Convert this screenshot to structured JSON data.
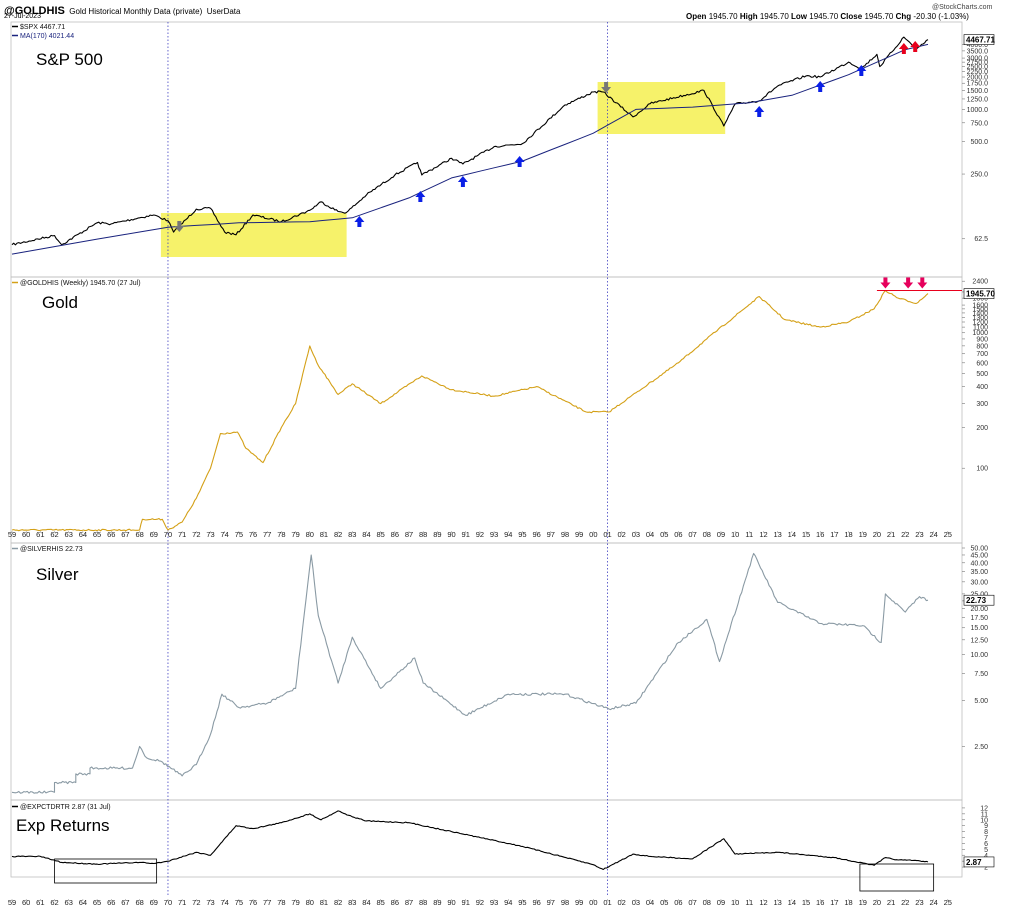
{
  "header": {
    "symbol": "@GOLDHIS",
    "description": "Gold Historical Monthly Data (private)",
    "source": "UserData",
    "date": "27-Jul-2023",
    "brand": "@StockCharts.com",
    "ohlc": {
      "open_label": "Open",
      "open": "1945.70",
      "high_label": "High",
      "high": "1945.70",
      "low_label": "Low",
      "low": "1945.70",
      "close_label": "Close",
      "close": "1945.70",
      "chg_label": "Chg",
      "chg": "-20.30 (-1.03%)"
    }
  },
  "colors": {
    "spx": "#000000",
    "ma": "#1a237e",
    "gold": "#d4a017",
    "silver": "#8a9aa4",
    "exp": "#000000",
    "highlight": "#f6f26a",
    "arrow_blue": "#0a1fe6",
    "arrow_red": "#e8001c",
    "arrow_pink": "#e6005c",
    "arrow_gray": "#777777",
    "dotted": "#4040c0"
  },
  "chart_data": [
    {
      "type": "line",
      "panel": "S&P 500",
      "title": "S&P 500",
      "legend": [
        "$SPX 4467.71",
        "MA(170) 4021.44"
      ],
      "last_value": "4467.71",
      "ma_value": "4021.44",
      "scale": "log",
      "ylim": [
        30,
        6500
      ],
      "yticks": [
        "4000.0",
        "3500.0",
        "3000.0",
        "2750.0",
        "2500.0",
        "2250.0",
        "2000.0",
        "1750.0",
        "1500.0",
        "1250.0",
        "1000.0",
        "750.0",
        "500.0",
        "250.0",
        "62.5"
      ],
      "ytick_values": [
        4000,
        3500,
        3000,
        2750,
        2500,
        2250,
        2000,
        1750,
        1500,
        1250,
        1000,
        750,
        500,
        250,
        62.5
      ],
      "series": [
        {
          "name": "$SPX",
          "x": [
            1959,
            1962,
            1962.5,
            1965,
            1966,
            1968,
            1969,
            1970,
            1970.4,
            1972,
            1973,
            1974,
            1974.8,
            1976,
            1978,
            1980,
            1980.8,
            1982,
            1982.6,
            1984,
            1986,
            1987.6,
            1987.9,
            1990,
            1990.8,
            1993,
            1995,
            1998,
            2000,
            2000.7,
            2002.8,
            2004,
            2007.8,
            2009.2,
            2010,
            2011.7,
            2013,
            2015,
            2016,
            2018,
            2018.9,
            2020,
            2020.2,
            2021.9,
            2022.8,
            2023.6
          ],
          "y": [
            55,
            67,
            55,
            88,
            86,
            98,
            104,
            92,
            72,
            118,
            120,
            72,
            68,
            104,
            90,
            115,
            138,
            112,
            110,
            160,
            245,
            320,
            245,
            350,
            310,
            450,
            480,
            1100,
            1450,
            1450,
            850,
            1130,
            1500,
            700,
            1120,
            1200,
            1650,
            2050,
            2000,
            2750,
            2400,
            3250,
            2500,
            4700,
            3650,
            4460
          ]
        },
        {
          "name": "MA(170)",
          "x": [
            1959,
            1965,
            1970,
            1975,
            1980,
            1983,
            1987,
            1990,
            1995,
            2000,
            2003,
            2007,
            2011,
            2014,
            2018,
            2022,
            2023.6
          ],
          "y": [
            45,
            62,
            80,
            88,
            90,
            98,
            150,
            230,
            330,
            600,
            1000,
            1050,
            1150,
            1350,
            2100,
            3600,
            4021
          ]
        }
      ],
      "highlights": [
        {
          "x0": 1969.5,
          "x1": 1982.6
        },
        {
          "x0": 2000.3,
          "x1": 2009.3
        }
      ],
      "annotations": {
        "blue_arrows": [
          1983.5,
          1987.8,
          1990.8,
          1994.8,
          2011.7,
          2016,
          2018.9
        ],
        "red_arrows": [
          2021.9,
          2022.7
        ],
        "gray_arrows": [
          1970.8,
          2000.9
        ]
      }
    },
    {
      "type": "line",
      "panel": "Gold",
      "title": "Gold",
      "legend": [
        "@GOLDHIS (Weekly) 1945.70 (27 Jul)"
      ],
      "last_value": "1945.70",
      "scale": "log",
      "ylim": [
        35,
        2450
      ],
      "yticks": [
        "2400",
        "2000",
        "1800",
        "1600",
        "1500",
        "1400",
        "1300",
        "1200",
        "1100",
        "1000",
        "900",
        "800",
        "700",
        "600",
        "500",
        "400",
        "300",
        "200",
        "100"
      ],
      "ytick_values": [
        2400,
        2000,
        1800,
        1600,
        1500,
        1400,
        1300,
        1200,
        1100,
        1000,
        900,
        800,
        700,
        600,
        500,
        400,
        300,
        200,
        100
      ],
      "series": [
        {
          "name": "@GOLDHIS",
          "x": [
            1959,
            1968,
            1968.2,
            1969.6,
            1970,
            1971,
            1972,
            1973,
            1973.7,
            1974.9,
            1975.5,
            1976.7,
            1978,
            1979,
            1980,
            1980.5,
            1982,
            1983,
            1985,
            1987.9,
            1990,
            1993,
            1996,
            1999.5,
            2001.1,
            2003,
            2006,
            2008,
            2011.7,
            2013.5,
            2016,
            2018,
            2019.8,
            2020.6,
            2021.5,
            2022.8,
            2023.6
          ],
          "y": [
            35,
            35,
            42,
            42,
            35,
            40,
            60,
            100,
            180,
            185,
            140,
            110,
            200,
            300,
            800,
            600,
            350,
            420,
            300,
            480,
            380,
            340,
            400,
            260,
            260,
            360,
            600,
            900,
            1850,
            1250,
            1100,
            1200,
            1500,
            2050,
            1800,
            1650,
            1945
          ]
        }
      ],
      "annotations": {
        "resistance": 2050,
        "pink_arrows": [
          2020.6,
          2022.2,
          2023.2
        ]
      }
    },
    {
      "type": "line",
      "panel": "Silver",
      "title": "Silver",
      "legend": [
        "@SILVERHIS 22.73"
      ],
      "last_value": "22.73",
      "scale": "log",
      "ylim": [
        1.2,
        50
      ],
      "yticks": [
        "50.00",
        "45.00",
        "40.00",
        "35.00",
        "30.00",
        "25.00",
        "22.50",
        "20.00",
        "17.50",
        "15.00",
        "12.50",
        "10.00",
        "7.50",
        "5.00",
        "2.50"
      ],
      "ytick_values": [
        50,
        45,
        40,
        35,
        30,
        25,
        22.5,
        20,
        17.5,
        15,
        12.5,
        10,
        7.5,
        5,
        2.5
      ],
      "series": [
        {
          "name": "@SILVERHIS",
          "x": [
            1959,
            1962,
            1962,
            1963.5,
            1963.5,
            1964.5,
            1964.5,
            1967.5,
            1968,
            1968.5,
            1969.5,
            1971,
            1972,
            1973,
            1973.8,
            1975,
            1977,
            1979,
            1980.1,
            1980.6,
            1982,
            1983,
            1985,
            1987.4,
            1988,
            1991,
            1994,
            1998,
            2001.1,
            2003,
            2006,
            2008,
            2008.9,
            2011.3,
            2013,
            2016,
            2019,
            2020.3,
            2020.6,
            2022,
            2023,
            2023.6
          ],
          "y": [
            1.25,
            1.25,
            1.45,
            1.45,
            1.65,
            1.65,
            1.8,
            1.8,
            2.5,
            2.1,
            2.0,
            1.6,
            1.9,
            3.0,
            5.5,
            4.5,
            4.8,
            6.0,
            45,
            18,
            6.5,
            13,
            6.0,
            9.5,
            6.5,
            4.0,
            5.5,
            5.5,
            4.4,
            4.8,
            12,
            17,
            9,
            46,
            22,
            16,
            15.5,
            12,
            25,
            19,
            24,
            22.73
          ]
        }
      ]
    },
    {
      "type": "line",
      "panel": "Exp Returns",
      "title": "Exp Returns",
      "legend": [
        "@EXPCTDRTR 2.87 (31 Jul)"
      ],
      "last_value": "2.87",
      "ylim": [
        1,
        13
      ],
      "yticks": [
        "12",
        "11",
        "10",
        "9",
        "8",
        "7",
        "6",
        "5",
        "4",
        "3",
        "2"
      ],
      "ytick_values": [
        12,
        11,
        10,
        9,
        8,
        7,
        6,
        5,
        4,
        3,
        2
      ],
      "series": [
        {
          "name": "@EXPCTDRTR",
          "x": [
            1959,
            1961,
            1962.5,
            1965,
            1968,
            1969,
            1970,
            1972,
            1973,
            1974.8,
            1976,
            1978,
            1980,
            1980.8,
            1982,
            1983,
            1984,
            1987,
            1990,
            1995,
            2000,
            2000.7,
            2002.8,
            2004,
            2007,
            2009.2,
            2010,
            2013,
            2017,
            2019.8,
            2020.6,
            2021.5,
            2022.8,
            2023.6
          ],
          "y": [
            3.8,
            3.8,
            2.8,
            2.5,
            2.8,
            2.6,
            3.0,
            4.5,
            4.0,
            9.0,
            8.5,
            9.5,
            11,
            10,
            11.5,
            10.5,
            9.8,
            9.5,
            8.0,
            5.5,
            2.4,
            1.6,
            4.2,
            3.8,
            3.4,
            6.8,
            4.2,
            4.5,
            3.6,
            2.3,
            3.6,
            3.2,
            3.1,
            2.87
          ]
        }
      ],
      "boxes": [
        {
          "x0": 1962,
          "x1": 1969.2
        },
        {
          "x0": 2018.8,
          "x1": 2024
        }
      ]
    }
  ],
  "x_axis": {
    "labels": [
      "59",
      "60",
      "61",
      "62",
      "63",
      "64",
      "65",
      "66",
      "67",
      "68",
      "69",
      "70",
      "71",
      "72",
      "73",
      "74",
      "75",
      "76",
      "77",
      "78",
      "79",
      "80",
      "81",
      "82",
      "83",
      "84",
      "85",
      "86",
      "87",
      "88",
      "89",
      "90",
      "91",
      "92",
      "93",
      "94",
      "95",
      "96",
      "97",
      "98",
      "99",
      "00",
      "01",
      "02",
      "03",
      "04",
      "05",
      "06",
      "07",
      "08",
      "09",
      "10",
      "11",
      "12",
      "13",
      "14",
      "15",
      "16",
      "17",
      "18",
      "19",
      "20",
      "21",
      "22",
      "23",
      "24",
      "25"
    ],
    "start_year": 1959,
    "vertical_markers": [
      1970,
      2001
    ]
  }
}
